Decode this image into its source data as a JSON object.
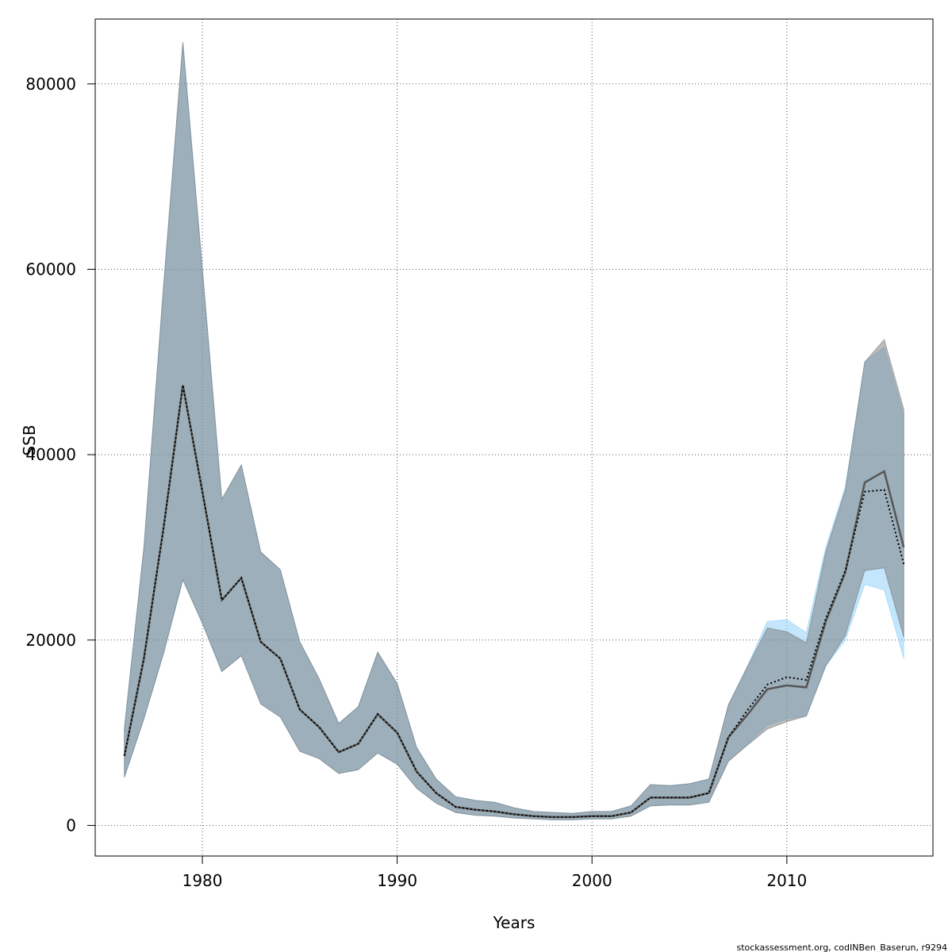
{
  "chart_data": {
    "type": "area",
    "xlabel": "Years",
    "ylabel": "SSB",
    "xlim": [
      1974.5,
      2017.5
    ],
    "ylim": [
      -3300,
      87000
    ],
    "x_ticks": [
      1980,
      1990,
      2000,
      2010
    ],
    "y_ticks": [
      0,
      20000,
      40000,
      60000,
      80000
    ],
    "grid": true,
    "grid_style": "dotted",
    "credit": "stockassessment.org, codINBen_Baserun, r9294",
    "x": [
      1976,
      1977,
      1978,
      1979,
      1980,
      1981,
      1982,
      1983,
      1984,
      1985,
      1986,
      1987,
      1988,
      1989,
      1990,
      1991,
      1992,
      1993,
      1994,
      1995,
      1996,
      1997,
      1998,
      1999,
      2000,
      2001,
      2002,
      2003,
      2004,
      2005,
      2006,
      2007,
      2008,
      2009,
      2010,
      2011,
      2012,
      2013,
      2014,
      2015,
      2016
    ],
    "series": [
      {
        "color": "#87cefa",
        "fill_opacity": 0.5,
        "line_color": "#000000",
        "line_style": "dotted",
        "estimate": [
          7500,
          18000,
          32000,
          47500,
          36000,
          24300,
          26700,
          19800,
          18000,
          12500,
          10600,
          7900,
          8800,
          12000,
          10000,
          5800,
          3500,
          2000,
          1700,
          1500,
          1200,
          1000,
          900,
          900,
          1000,
          1000,
          1400,
          3000,
          3000,
          3000,
          3500,
          9500,
          12500,
          15200,
          16000,
          15700,
          22300,
          27500,
          36000,
          36200,
          28200
        ],
        "low": [
          5200,
          11500,
          18500,
          26500,
          21800,
          16600,
          18300,
          13100,
          11700,
          8000,
          7200,
          5600,
          6000,
          7800,
          6600,
          4000,
          2400,
          1400,
          1100,
          1000,
          800,
          700,
          600,
          600,
          700,
          700,
          1000,
          2100,
          2200,
          2200,
          2500,
          6900,
          8800,
          10800,
          11500,
          11800,
          17200,
          20000,
          26000,
          25400,
          18000
        ],
        "high": [
          10500,
          30000,
          58000,
          84500,
          60000,
          35200,
          38900,
          29500,
          27600,
          19800,
          15800,
          11000,
          12800,
          18700,
          15300,
          8400,
          5000,
          3100,
          2700,
          2500,
          1900,
          1500,
          1400,
          1300,
          1500,
          1500,
          2100,
          4400,
          4300,
          4500,
          5000,
          13000,
          17300,
          22000,
          22200,
          20800,
          30000,
          36500,
          50000,
          51600,
          44300
        ]
      },
      {
        "color": "#777777",
        "fill_opacity": 0.5,
        "line_color": "#555555",
        "line_style": "solid",
        "estimate": [
          7500,
          18000,
          32000,
          47500,
          36000,
          24300,
          26700,
          19800,
          18000,
          12500,
          10600,
          7900,
          8800,
          12000,
          10000,
          5800,
          3500,
          2000,
          1700,
          1500,
          1200,
          1000,
          900,
          900,
          1000,
          1000,
          1400,
          3000,
          3000,
          3000,
          3500,
          9500,
          12000,
          14700,
          15100,
          14900,
          22000,
          27300,
          37000,
          38200,
          30000
        ],
        "low": [
          5200,
          11500,
          18500,
          26500,
          21800,
          16600,
          18300,
          13100,
          11700,
          8000,
          7200,
          5600,
          6000,
          7800,
          6600,
          4000,
          2400,
          1400,
          1100,
          1000,
          800,
          700,
          600,
          600,
          700,
          700,
          1000,
          2100,
          2200,
          2200,
          2500,
          6900,
          8700,
          10400,
          11200,
          11800,
          17200,
          20500,
          27500,
          27800,
          20300
        ],
        "high": [
          10500,
          30000,
          58000,
          84500,
          60000,
          35200,
          38900,
          29500,
          27600,
          19800,
          15800,
          11000,
          12800,
          18700,
          15300,
          8400,
          5000,
          3100,
          2700,
          2500,
          1900,
          1500,
          1400,
          1300,
          1500,
          1500,
          2100,
          4400,
          4300,
          4500,
          5000,
          13000,
          17200,
          21300,
          20900,
          19700,
          29500,
          36200,
          50000,
          52400,
          44900
        ]
      }
    ]
  }
}
